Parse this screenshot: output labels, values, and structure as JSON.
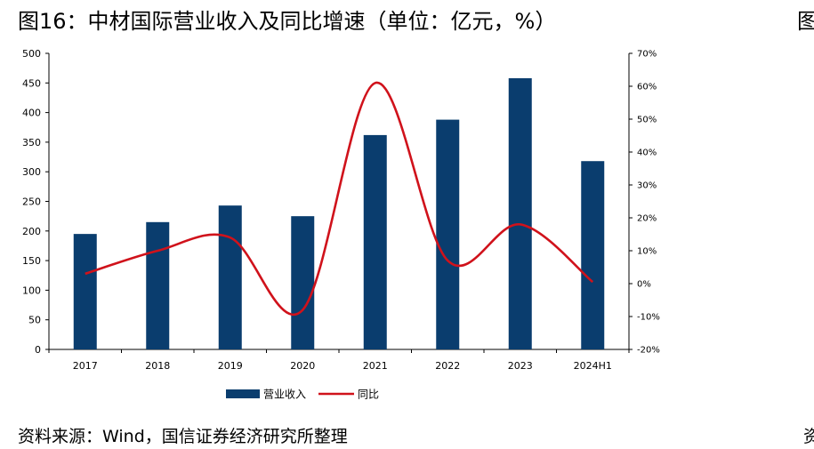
{
  "title": "图16：中材国际营业收入及同比增速（单位：亿元，%）",
  "title_cut": "图",
  "source": "资料来源：Wind，国信证券经济研究所整理",
  "source_cut": "资",
  "colors": {
    "bar": "#0a3d6e",
    "line": "#d0121b",
    "axis": "#000000"
  },
  "chart_data": {
    "type": "bar",
    "categories": [
      "2017",
      "2018",
      "2019",
      "2020",
      "2021",
      "2022",
      "2023",
      "2024H1"
    ],
    "series": [
      {
        "name": "营业收入",
        "type": "bar",
        "axis": "left",
        "values": [
          195,
          215,
          243,
          225,
          362,
          388,
          458,
          318
        ]
      },
      {
        "name": "同比",
        "type": "line",
        "axis": "right",
        "smooth": true,
        "values": [
          3,
          10,
          14,
          -8,
          61,
          7,
          18,
          0.5
        ]
      }
    ],
    "left_axis": {
      "min": 0,
      "max": 500,
      "step": 50,
      "tick_labels": [
        "0",
        "50",
        "100",
        "150",
        "200",
        "250",
        "300",
        "350",
        "400",
        "450",
        "500"
      ]
    },
    "right_axis": {
      "min": -20,
      "max": 70,
      "step": 10,
      "tick_labels": [
        "-20%",
        "-10%",
        "0%",
        "10%",
        "20%",
        "30%",
        "40%",
        "50%",
        "60%",
        "70%"
      ]
    },
    "legend": [
      "营业收入",
      "同比"
    ],
    "legend_position": "bottom"
  }
}
